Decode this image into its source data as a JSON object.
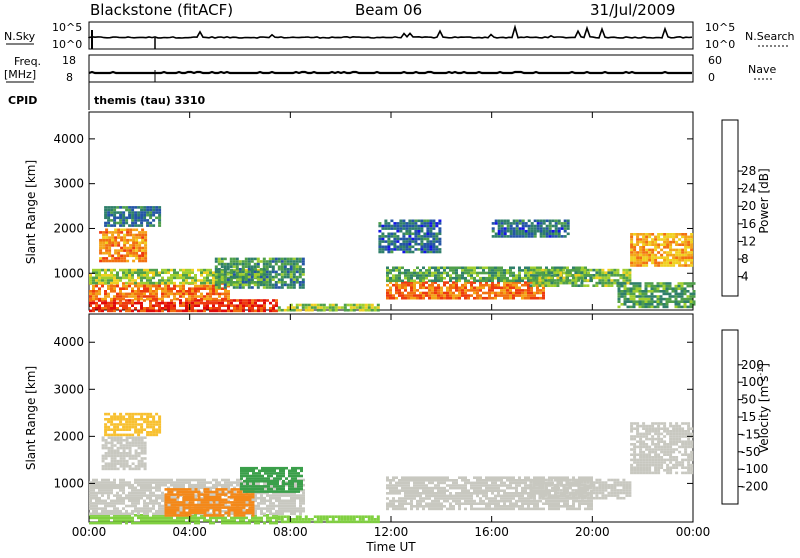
{
  "header": {
    "station": "Blackstone (fitACF)",
    "beam": "Beam 06",
    "date": "31/Jul/2009"
  },
  "strips": {
    "nsky_label": "N.Sky",
    "nsky_ticks": [
      "10^5",
      "10^0"
    ],
    "nsearch_label": "N.Search",
    "nsearch_ticks": [
      "10^5",
      "10^0"
    ],
    "freq_label": "Freq.",
    "freq_unit": "[MHz]",
    "freq_ticks": [
      "18",
      "8"
    ],
    "nave_label": "Nave",
    "nave_ticks": [
      "60",
      "0"
    ],
    "cpid_label": "CPID",
    "cpid_value": "themis (tau) 3310"
  },
  "axes": {
    "ylabel": "Slant Range [km]",
    "xlabel": "Time UT",
    "yticks": [
      {
        "label": "4000",
        "value": 4000
      },
      {
        "label": "3000",
        "value": 3000
      },
      {
        "label": "2000",
        "value": 2000
      },
      {
        "label": "1000",
        "value": 1000
      }
    ],
    "xticks": [
      {
        "label": "00:00",
        "hour": 0
      },
      {
        "label": "04:00",
        "hour": 4
      },
      {
        "label": "08:00",
        "hour": 8
      },
      {
        "label": "12:00",
        "hour": 12
      },
      {
        "label": "16:00",
        "hour": 16
      },
      {
        "label": "20:00",
        "hour": 20
      },
      {
        "label": "00:00",
        "hour": 24
      }
    ]
  },
  "power_colorbar": {
    "label": "Power [dB]",
    "colors": [
      "#1414e6",
      "#2455a6",
      "#2f7f6a",
      "#4f9f4a",
      "#9fcf2f",
      "#f0d020",
      "#f4a418",
      "#f27010",
      "#ee3a0e",
      "#e00a0a"
    ],
    "labels": [
      "4",
      "8",
      "12",
      "16",
      "20",
      "24",
      "28"
    ]
  },
  "velocity_colorbar": {
    "label": "Velocity [m s",
    "label_sup": "-1",
    "label_end": "]",
    "colors": [
      "#e8140e",
      "#f04c10",
      "#f48818",
      "#f8c030",
      "#c8c8c0",
      "#c8c8c0",
      "#80d040",
      "#3a9f4a",
      "#2a6a90",
      "#1f3aa8"
    ],
    "labels": [
      "-200",
      "-100",
      "-50",
      "-15",
      "15",
      "50",
      "100",
      "200"
    ]
  },
  "chart_data": [
    {
      "type": "heatmap",
      "title": "Power",
      "xlabel": "Time UT",
      "ylabel": "Slant Range [km]",
      "xlim": [
        0,
        24
      ],
      "ylim": [
        180,
        4600
      ],
      "colorbar_label": "Power [dB]",
      "regions": [
        {
          "t0": 0.0,
          "t1": 7.5,
          "r0": 180,
          "r1": 420,
          "value": 26
        },
        {
          "t0": 0.0,
          "t1": 5.5,
          "r0": 420,
          "r1": 800,
          "value": 22
        },
        {
          "t0": 0.0,
          "t1": 7.0,
          "r0": 800,
          "r1": 1100,
          "value": 13
        },
        {
          "t0": 5.0,
          "t1": 8.5,
          "r0": 700,
          "r1": 1350,
          "value": 9
        },
        {
          "t0": 7.5,
          "t1": 11.5,
          "r0": 180,
          "r1": 320,
          "value": 14
        },
        {
          "t0": 0.4,
          "t1": 2.2,
          "r0": 1300,
          "r1": 2000,
          "value": 21
        },
        {
          "t0": 0.6,
          "t1": 2.8,
          "r0": 2050,
          "r1": 2500,
          "value": 7
        },
        {
          "t0": 11.8,
          "t1": 18.0,
          "r0": 450,
          "r1": 820,
          "value": 23
        },
        {
          "t0": 11.8,
          "t1": 20.0,
          "r0": 820,
          "r1": 1150,
          "value": 10
        },
        {
          "t0": 17.5,
          "t1": 21.5,
          "r0": 700,
          "r1": 1100,
          "value": 12
        },
        {
          "t0": 21.5,
          "t1": 24.0,
          "r0": 1200,
          "r1": 1900,
          "value": 19
        },
        {
          "t0": 21.0,
          "t1": 24.0,
          "r0": 250,
          "r1": 800,
          "value": 10
        },
        {
          "t0": 11.5,
          "t1": 14.0,
          "r0": 1500,
          "r1": 2200,
          "value": 6
        },
        {
          "t0": 16.0,
          "t1": 19.0,
          "r0": 1800,
          "r1": 2200,
          "value": 6
        }
      ]
    },
    {
      "type": "heatmap",
      "title": "Velocity",
      "xlabel": "Time UT",
      "ylabel": "Slant Range [km]",
      "xlim": [
        0,
        24
      ],
      "ylim": [
        180,
        4600
      ],
      "colorbar_label": "Velocity [m s-1]",
      "regions": [
        {
          "t0": 0.0,
          "t1": 7.5,
          "r0": 180,
          "r1": 350,
          "value": 40
        },
        {
          "t0": 0.0,
          "t1": 8.5,
          "r0": 350,
          "r1": 1100,
          "value": 0
        },
        {
          "t0": 3.0,
          "t1": 6.5,
          "r0": 300,
          "r1": 900,
          "value": -60
        },
        {
          "t0": 6.0,
          "t1": 8.5,
          "r0": 800,
          "r1": 1350,
          "value": 60
        },
        {
          "t0": 7.5,
          "t1": 11.5,
          "r0": 180,
          "r1": 320,
          "value": 30
        },
        {
          "t0": 0.5,
          "t1": 2.2,
          "r0": 1300,
          "r1": 2000,
          "value": 0
        },
        {
          "t0": 0.6,
          "t1": 2.8,
          "r0": 2050,
          "r1": 2500,
          "value": -40
        },
        {
          "t0": 11.8,
          "t1": 20.0,
          "r0": 450,
          "r1": 1150,
          "value": 0
        },
        {
          "t0": 17.5,
          "t1": 21.5,
          "r0": 700,
          "r1": 1100,
          "value": 0
        },
        {
          "t0": 21.5,
          "t1": 24.0,
          "r0": 1200,
          "r1": 2300,
          "value": 0
        }
      ]
    }
  ]
}
